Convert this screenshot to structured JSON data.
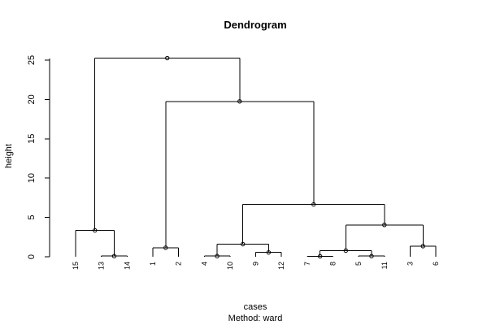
{
  "chart_data": {
    "type": "dendrogram",
    "title": "Dendrogram",
    "xlabel": "cases",
    "sublabel": "Method:  ward",
    "ylabel": "height",
    "ylim": [
      0,
      25
    ],
    "yticks": [
      0,
      5,
      10,
      15,
      20,
      25
    ],
    "leaves": [
      "15",
      "13",
      "14",
      "1",
      "2",
      "4",
      "10",
      "9",
      "12",
      "7",
      "8",
      "5",
      "11",
      "3",
      "6"
    ],
    "merges": [
      {
        "id": "m1",
        "left": "13",
        "right": "14",
        "height": 0.08
      },
      {
        "id": "m2",
        "left": "15",
        "right": "m1",
        "height": 3.35
      },
      {
        "id": "m3",
        "left": "1",
        "right": "2",
        "height": 1.15
      },
      {
        "id": "m4",
        "left": "4",
        "right": "10",
        "height": 0.08
      },
      {
        "id": "m5",
        "left": "9",
        "right": "12",
        "height": 0.55
      },
      {
        "id": "m6",
        "left": "m4",
        "right": "m5",
        "height": 1.6
      },
      {
        "id": "m7",
        "left": "7",
        "right": "8",
        "height": 0.06
      },
      {
        "id": "m8",
        "left": "5",
        "right": "11",
        "height": 0.08
      },
      {
        "id": "m9",
        "left": "m7",
        "right": "m8",
        "height": 0.78
      },
      {
        "id": "m10",
        "left": "3",
        "right": "6",
        "height": 1.35
      },
      {
        "id": "m11",
        "left": "m9",
        "right": "m10",
        "height": 4.05
      },
      {
        "id": "m12",
        "left": "m6",
        "right": "m11",
        "height": 6.65
      },
      {
        "id": "m13",
        "left": "m3",
        "right": "m12",
        "height": 19.75
      },
      {
        "id": "m14",
        "left": "m2",
        "right": "m13",
        "height": 25.25
      }
    ]
  }
}
